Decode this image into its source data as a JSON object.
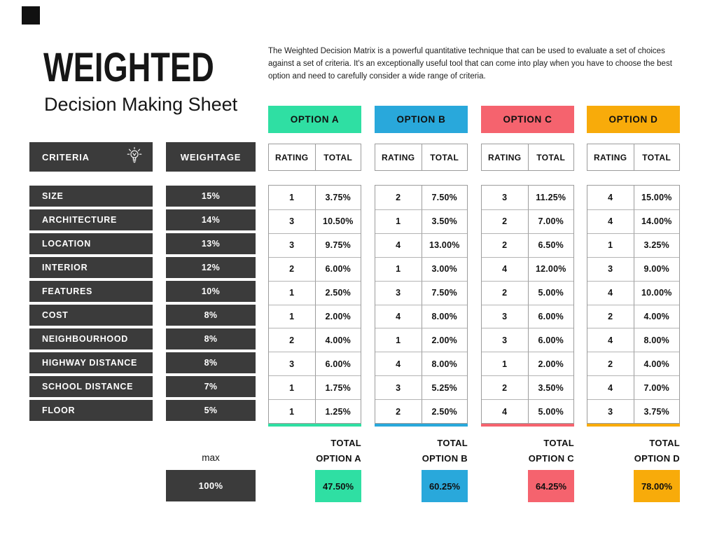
{
  "page": {
    "title": "WEIGHTED",
    "subtitle": "Decision Making Sheet",
    "description": "The Weighted Decision Matrix is a powerful quantitative technique that can be used to evaluate a set of choices against a set of criteria. It's an exceptionally useful tool that can come into play when you have to choose the best option and need to carefully consider a wide range of criteria."
  },
  "colors": {
    "dark": "#3b3b3b",
    "option_a": "#2fdfa3",
    "option_b": "#29a8db",
    "option_c": "#f5636e",
    "option_d": "#f8ab0a"
  },
  "table": {
    "criteria_header": "CRITERIA",
    "weightage_header": "WEIGHTAGE",
    "rating_header": "RATING",
    "total_header": "TOTAL",
    "criteria": [
      {
        "name": "SIZE",
        "weight": "15%"
      },
      {
        "name": "ARCHITECTURE",
        "weight": "14%"
      },
      {
        "name": "LOCATION",
        "weight": "13%"
      },
      {
        "name": "INTERIOR",
        "weight": "12%"
      },
      {
        "name": "FEATURES",
        "weight": "10%"
      },
      {
        "name": "COST",
        "weight": "8%"
      },
      {
        "name": "NEIGHBOURHOOD",
        "weight": "8%"
      },
      {
        "name": "HIGHWAY DISTANCE",
        "weight": "8%"
      },
      {
        "name": "SCHOOL DISTANCE",
        "weight": "7%"
      },
      {
        "name": "FLOOR",
        "weight": "5%"
      }
    ]
  },
  "options": [
    {
      "label": "OPTION A",
      "color": "#2fdfa3",
      "rows": [
        {
          "rating": "1",
          "total": "3.75%"
        },
        {
          "rating": "3",
          "total": "10.50%"
        },
        {
          "rating": "3",
          "total": "9.75%"
        },
        {
          "rating": "2",
          "total": "6.00%"
        },
        {
          "rating": "1",
          "total": "2.50%"
        },
        {
          "rating": "1",
          "total": "2.00%"
        },
        {
          "rating": "2",
          "total": "4.00%"
        },
        {
          "rating": "3",
          "total": "6.00%"
        },
        {
          "rating": "1",
          "total": "1.75%"
        },
        {
          "rating": "1",
          "total": "1.25%"
        }
      ],
      "summary_label_line1": "TOTAL",
      "summary_label_line2": "OPTION A",
      "summary_value": "47.50%"
    },
    {
      "label": "OPTION B",
      "color": "#29a8db",
      "rows": [
        {
          "rating": "2",
          "total": "7.50%"
        },
        {
          "rating": "1",
          "total": "3.50%"
        },
        {
          "rating": "4",
          "total": "13.00%"
        },
        {
          "rating": "1",
          "total": "3.00%"
        },
        {
          "rating": "3",
          "total": "7.50%"
        },
        {
          "rating": "4",
          "total": "8.00%"
        },
        {
          "rating": "1",
          "total": "2.00%"
        },
        {
          "rating": "4",
          "total": "8.00%"
        },
        {
          "rating": "3",
          "total": "5.25%"
        },
        {
          "rating": "2",
          "total": "2.50%"
        }
      ],
      "summary_label_line1": "TOTAL",
      "summary_label_line2": "OPTION B",
      "summary_value": "60.25%"
    },
    {
      "label": "OPTION C",
      "color": "#f5636e",
      "rows": [
        {
          "rating": "3",
          "total": "11.25%"
        },
        {
          "rating": "2",
          "total": "7.00%"
        },
        {
          "rating": "2",
          "total": "6.50%"
        },
        {
          "rating": "4",
          "total": "12.00%"
        },
        {
          "rating": "2",
          "total": "5.00%"
        },
        {
          "rating": "3",
          "total": "6.00%"
        },
        {
          "rating": "3",
          "total": "6.00%"
        },
        {
          "rating": "1",
          "total": "2.00%"
        },
        {
          "rating": "2",
          "total": "3.50%"
        },
        {
          "rating": "4",
          "total": "5.00%"
        }
      ],
      "summary_label_line1": "TOTAL",
      "summary_label_line2": "OPTION C",
      "summary_value": "64.25%"
    },
    {
      "label": "OPTION D",
      "color": "#f8ab0a",
      "rows": [
        {
          "rating": "4",
          "total": "15.00%"
        },
        {
          "rating": "4",
          "total": "14.00%"
        },
        {
          "rating": "1",
          "total": "3.25%"
        },
        {
          "rating": "3",
          "total": "9.00%"
        },
        {
          "rating": "4",
          "total": "10.00%"
        },
        {
          "rating": "2",
          "total": "4.00%"
        },
        {
          "rating": "4",
          "total": "8.00%"
        },
        {
          "rating": "2",
          "total": "4.00%"
        },
        {
          "rating": "4",
          "total": "7.00%"
        },
        {
          "rating": "3",
          "total": "3.75%"
        }
      ],
      "summary_label_line1": "TOTAL",
      "summary_label_line2": "OPTION D",
      "summary_value": "78.00%"
    }
  ],
  "footer": {
    "max_label": "max",
    "max_value": "100%"
  }
}
